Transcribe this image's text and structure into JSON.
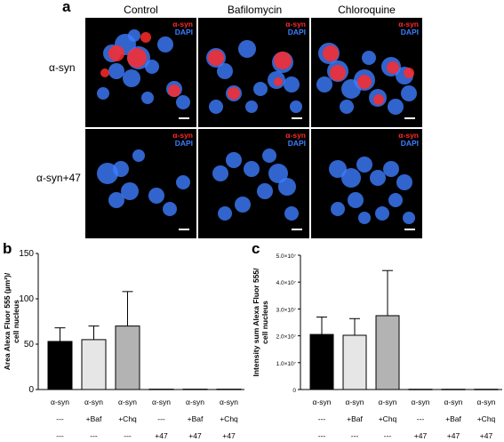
{
  "panel_a": {
    "letter": "a",
    "columns": [
      "Control",
      "Bafilomycin",
      "Chloroquine"
    ],
    "rows": [
      "α-syn",
      "α-syn+47"
    ],
    "stain_syn": "α-syn",
    "stain_dapi": "DAPI",
    "colors": {
      "syn": "#ff2a2a",
      "dapi": "#3d7dff",
      "background": "#000000"
    }
  },
  "panel_b": {
    "letter": "b"
  },
  "panel_c": {
    "letter": "c"
  },
  "chart_data": [
    {
      "type": "bar",
      "ylabel": "Area Alexa Fluor 555 (µm²)/\ncell nucleus",
      "ylim": [
        0,
        150
      ],
      "yticks": [
        "0",
        "50",
        "100",
        "150"
      ],
      "categories": [
        [
          "α-syn",
          "---",
          "---"
        ],
        [
          "α-syn",
          "+Baf",
          "---"
        ],
        [
          "α-syn",
          "+Chq",
          "---"
        ],
        [
          "α-syn",
          "---",
          "+47"
        ],
        [
          "α-syn",
          "+Baf",
          "+47"
        ],
        [
          "α-syn",
          "+Chq",
          "+47"
        ]
      ],
      "values": [
        53,
        55,
        70,
        0.4,
        0.4,
        0.4
      ],
      "errors": [
        15,
        15,
        38,
        0,
        0,
        0
      ],
      "colors": [
        "#000000",
        "#e6e6e6",
        "#b3b3b3",
        "#000000",
        "#e6e6e6",
        "#b3b3b3"
      ]
    },
    {
      "type": "bar",
      "ylabel": "Intensity sum Alexa Fluor 555/\ncell nucleus",
      "ylim": [
        0,
        5.0
      ],
      "yticks": [
        "0",
        "1.0×10⁷",
        "2.0×10⁷",
        "3.0×10⁷",
        "4.0×10⁷",
        "5.0×10⁷"
      ],
      "categories": [
        [
          "α-syn",
          "---",
          "---"
        ],
        [
          "α-syn",
          "+Baf",
          "---"
        ],
        [
          "α-syn",
          "+Chq",
          "---"
        ],
        [
          "α-syn",
          "---",
          "+47"
        ],
        [
          "α-syn",
          "+Baf",
          "+47"
        ],
        [
          "α-syn",
          "+Chq",
          "+47"
        ]
      ],
      "values": [
        2.05,
        2.02,
        2.75,
        0.01,
        0.01,
        0.01
      ],
      "errors": [
        0.65,
        0.62,
        1.68,
        0,
        0,
        0
      ],
      "colors": [
        "#000000",
        "#e6e6e6",
        "#b3b3b3",
        "#000000",
        "#e6e6e6",
        "#b3b3b3"
      ]
    }
  ]
}
